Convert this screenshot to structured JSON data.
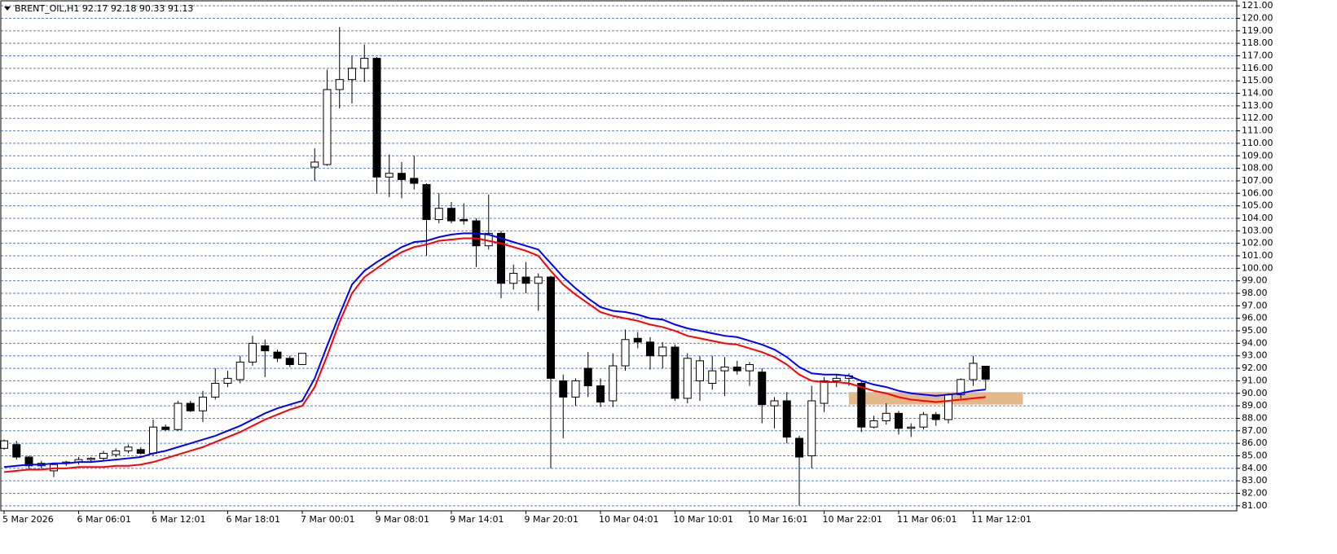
{
  "chart_data": {
    "type": "candlestick",
    "title": "BRENT_OIL,H1  92.17 92.18 90.33 91.13",
    "categories": [
      "5 Mar 2026",
      null,
      null,
      null,
      null,
      null,
      "6 Mar 06:01",
      null,
      null,
      null,
      null,
      null,
      "6 Mar 12:01",
      null,
      null,
      null,
      null,
      null,
      "6 Mar 18:01",
      null,
      null,
      null,
      null,
      null,
      "7 Mar 00:01",
      null,
      null,
      null,
      null,
      null,
      "9 Mar 08:01",
      null,
      null,
      null,
      null,
      null,
      "9 Mar 14:01",
      null,
      null,
      null,
      null,
      null,
      "9 Mar 20:01",
      null,
      null,
      null,
      null,
      null,
      "10 Mar 04:01",
      null,
      null,
      null,
      null,
      null,
      "10 Mar 10:01",
      null,
      null,
      null,
      null,
      null,
      "10 Mar 16:01",
      null,
      null,
      null,
      null,
      null,
      "10 Mar 22:01",
      null,
      null,
      null,
      null,
      null,
      "11 Mar 06:01",
      null,
      null,
      null,
      null,
      null,
      "11 Mar 12:01",
      null
    ],
    "open": [
      85.6,
      85.9,
      84.9,
      84.2,
      83.8,
      84.4,
      84.5,
      84.7,
      84.8,
      85.1,
      85.4,
      85.5,
      85.2,
      87.3,
      87.1,
      89.2,
      88.6,
      89.7,
      90.8,
      91.1,
      92.5,
      93.8,
      93.3,
      92.8,
      92.3,
      108.1,
      108.3,
      114.3,
      115.1,
      116.0,
      116.8,
      107.3,
      107.6,
      107.2,
      106.7,
      103.9,
      104.8,
      103.9,
      103.8,
      101.8,
      102.8,
      98.8,
      99.3,
      98.8,
      99.3,
      91.0,
      89.7,
      92.0,
      90.6,
      89.4,
      92.2,
      94.4,
      94.1,
      93.0,
      93.7,
      89.6,
      91.0,
      90.8,
      91.8,
      92.1,
      91.8,
      91.7,
      89.0,
      89.4,
      86.4,
      85.0,
      89.2,
      91.0,
      91.2,
      90.8,
      87.3,
      87.8,
      88.4,
      87.2,
      87.3,
      88.3,
      87.9,
      89.9,
      91.1,
      92.17
    ],
    "high": [
      86.3,
      86.2,
      85.0,
      84.6,
      84.4,
      84.6,
      84.9,
      84.9,
      85.4,
      85.6,
      85.9,
      85.7,
      87.9,
      87.5,
      89.4,
      89.4,
      90.2,
      92.0,
      91.8,
      93.0,
      94.6,
      94.3,
      93.5,
      93.0,
      93.2,
      109.6,
      115.9,
      119.3,
      117.0,
      117.9,
      116.9,
      109.1,
      108.5,
      109.0,
      106.8,
      106.0,
      105.3,
      105.2,
      104.0,
      105.9,
      103.0,
      100.3,
      100.5,
      99.6,
      99.4,
      91.5,
      91.2,
      93.3,
      91.2,
      93.2,
      95.1,
      94.9,
      94.5,
      94.1,
      93.9,
      93.2,
      93.0,
      93.0,
      92.9,
      92.6,
      92.5,
      92.0,
      89.7,
      90.1,
      86.6,
      90.6,
      91.3,
      91.5,
      91.6,
      91.0,
      88.2,
      89.2,
      88.6,
      87.6,
      88.5,
      88.5,
      90.0,
      91.2,
      93.0,
      92.18
    ],
    "low": [
      85.5,
      84.7,
      83.9,
      84.0,
      83.3,
      84.2,
      84.3,
      84.5,
      84.6,
      84.9,
      85.2,
      85.1,
      85.0,
      87.0,
      87.0,
      88.5,
      87.7,
      89.5,
      90.5,
      90.8,
      92.2,
      91.3,
      92.5,
      92.1,
      92.3,
      107.0,
      108.2,
      112.8,
      113.2,
      114.9,
      106.0,
      105.7,
      105.6,
      106.3,
      101.0,
      103.6,
      103.6,
      103.5,
      100.1,
      101.5,
      97.6,
      98.3,
      98.0,
      96.6,
      84.0,
      86.4,
      89.0,
      89.7,
      88.9,
      88.9,
      91.8,
      93.6,
      91.9,
      92.0,
      89.4,
      89.2,
      89.4,
      90.3,
      89.8,
      91.5,
      90.6,
      87.6,
      87.2,
      86.0,
      81.0,
      84.0,
      88.5,
      90.5,
      90.6,
      86.9,
      87.2,
      87.5,
      86.7,
      86.5,
      87.1,
      87.4,
      87.6,
      89.6,
      90.6,
      90.33
    ],
    "close": [
      86.2,
      84.9,
      84.2,
      84.4,
      84.3,
      84.5,
      84.7,
      84.8,
      85.2,
      85.4,
      85.7,
      85.2,
      87.3,
      87.1,
      89.2,
      88.6,
      89.7,
      90.8,
      91.2,
      92.5,
      94.0,
      93.4,
      92.8,
      92.3,
      93.2,
      108.5,
      114.3,
      115.1,
      116.0,
      116.8,
      107.3,
      107.6,
      107.1,
      106.8,
      103.9,
      104.8,
      103.8,
      103.8,
      101.8,
      102.8,
      98.8,
      99.6,
      98.8,
      99.3,
      91.2,
      89.7,
      91.0,
      90.6,
      89.3,
      92.2,
      94.3,
      94.1,
      93.0,
      93.7,
      89.6,
      92.8,
      92.6,
      91.8,
      92.1,
      91.8,
      92.3,
      89.1,
      89.4,
      86.5,
      84.9,
      89.4,
      91.0,
      91.2,
      91.4,
      87.3,
      87.8,
      88.4,
      87.2,
      87.3,
      88.3,
      87.9,
      89.9,
      91.1,
      92.4,
      91.13
    ],
    "ma_lines": [
      {
        "color": "#0000ff",
        "values": [
          84.1,
          84.2,
          84.3,
          84.3,
          84.4,
          84.4,
          84.5,
          84.5,
          84.6,
          84.7,
          84.8,
          84.9,
          85.2,
          85.4,
          85.7,
          86.0,
          86.3,
          86.6,
          87.0,
          87.4,
          87.9,
          88.4,
          88.8,
          89.1,
          89.4,
          91.2,
          93.8,
          96.3,
          98.7,
          99.8,
          100.5,
          101.1,
          101.7,
          102.1,
          102.2,
          102.5,
          102.7,
          102.8,
          102.8,
          102.7,
          102.4,
          102.1,
          101.8,
          101.5,
          100.4,
          99.3,
          98.4,
          97.6,
          96.9,
          96.6,
          96.5,
          96.3,
          96.0,
          95.9,
          95.5,
          95.2,
          95.0,
          94.8,
          94.6,
          94.5,
          94.2,
          93.9,
          93.5,
          92.9,
          92.1,
          91.6,
          91.5,
          91.5,
          91.4,
          91.0,
          90.7,
          90.5,
          90.2,
          90.0,
          89.9,
          89.8,
          89.9,
          90.0,
          90.2,
          90.3
        ]
      },
      {
        "color": "#ff0000",
        "values": [
          83.7,
          83.8,
          83.9,
          83.9,
          84.0,
          84.0,
          84.1,
          84.1,
          84.1,
          84.2,
          84.2,
          84.3,
          84.5,
          84.8,
          85.1,
          85.4,
          85.7,
          86.1,
          86.5,
          86.9,
          87.4,
          87.9,
          88.3,
          88.7,
          89.0,
          90.5,
          93.0,
          95.7,
          98.0,
          99.3,
          100.0,
          100.7,
          101.3,
          101.7,
          101.9,
          102.2,
          102.3,
          102.4,
          102.4,
          102.2,
          102.0,
          101.7,
          101.4,
          101.0,
          99.8,
          98.7,
          97.9,
          97.2,
          96.5,
          96.2,
          96.0,
          95.8,
          95.5,
          95.3,
          95.0,
          94.6,
          94.4,
          94.2,
          94.0,
          93.9,
          93.6,
          93.3,
          92.9,
          92.3,
          91.5,
          91.0,
          90.9,
          90.9,
          90.8,
          90.5,
          90.2,
          90.0,
          89.7,
          89.5,
          89.4,
          89.3,
          89.4,
          89.5,
          89.6,
          89.7
        ]
      }
    ],
    "zone": {
      "ylim": [
        89.1,
        90.1
      ],
      "color": "#e3b98c"
    },
    "up_color": "#ffffff",
    "down_color": "#000000",
    "grid_color": "#5b7fc9",
    "ylim": [
      80.6,
      121.4
    ],
    "yticks": [
      {
        "value": 81,
        "label": "81.00"
      },
      {
        "value": 82,
        "label": "82.00"
      },
      {
        "value": 83,
        "label": "83.00"
      },
      {
        "value": 84,
        "label": "84.00"
      },
      {
        "value": 85,
        "label": "85.00"
      },
      {
        "value": 86,
        "label": "86.00"
      },
      {
        "value": 87,
        "label": "87.00"
      },
      {
        "value": 88,
        "label": "88.00"
      },
      {
        "value": 89,
        "label": "89.00"
      },
      {
        "value": 90,
        "label": "90.00"
      },
      {
        "value": 91,
        "label": "91.00"
      },
      {
        "value": 92,
        "label": "92.00"
      },
      {
        "value": 93,
        "label": "93.00"
      },
      {
        "value": 94,
        "label": "94.00"
      },
      {
        "value": 95,
        "label": "95.00"
      },
      {
        "value": 96,
        "label": "96.00"
      },
      {
        "value": 97,
        "label": "97.00"
      },
      {
        "value": 98,
        "label": "98.00"
      },
      {
        "value": 99,
        "label": "99.00"
      },
      {
        "value": 100,
        "label": "100.00"
      },
      {
        "value": 101,
        "label": "101.00"
      },
      {
        "value": 102,
        "label": "102.00"
      },
      {
        "value": 103,
        "label": "103.00"
      },
      {
        "value": 104,
        "label": "104.00"
      },
      {
        "value": 105,
        "label": "105.00"
      },
      {
        "value": 106,
        "label": "106.00"
      },
      {
        "value": 107,
        "label": "107.00"
      },
      {
        "value": 108,
        "label": "108.00"
      },
      {
        "value": 109,
        "label": "109.00"
      },
      {
        "value": 110,
        "label": "110.00"
      },
      {
        "value": 111,
        "label": "111.00"
      },
      {
        "value": 112,
        "label": "112.00"
      },
      {
        "value": 113,
        "label": "113.00"
      },
      {
        "value": 114,
        "label": "114.00"
      },
      {
        "value": 115,
        "label": "115.00"
      },
      {
        "value": 116,
        "label": "116.00"
      },
      {
        "value": 117,
        "label": "117.00"
      },
      {
        "value": 118,
        "label": "118.00"
      },
      {
        "value": 119,
        "label": "119.00"
      },
      {
        "value": 120,
        "label": "120.00"
      },
      {
        "value": 121,
        "label": "121.00"
      }
    ],
    "grid": true
  }
}
